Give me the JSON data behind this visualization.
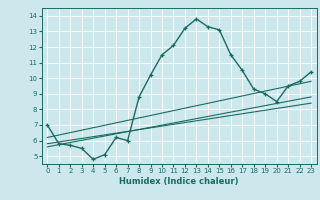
{
  "xlabel": "Humidex (Indice chaleur)",
  "bg_color": "#cce8ec",
  "line_color": "#1a6b62",
  "grid_color": "#ffffff",
  "xlim": [
    -0.5,
    23.5
  ],
  "ylim": [
    4.5,
    14.5
  ],
  "xticks": [
    0,
    1,
    2,
    3,
    4,
    5,
    6,
    7,
    8,
    9,
    10,
    11,
    12,
    13,
    14,
    15,
    16,
    17,
    18,
    19,
    20,
    21,
    22,
    23
  ],
  "yticks": [
    5,
    6,
    7,
    8,
    9,
    10,
    11,
    12,
    13,
    14
  ],
  "line1_x": [
    0,
    1,
    2,
    3,
    4,
    5,
    6,
    7,
    8,
    9,
    10,
    11,
    12,
    13,
    14,
    15,
    16,
    17,
    18,
    19,
    20,
    21,
    22,
    23
  ],
  "line1_y": [
    7.0,
    5.8,
    5.7,
    5.5,
    4.8,
    5.1,
    6.2,
    6.0,
    8.8,
    10.2,
    11.5,
    12.1,
    13.2,
    13.8,
    13.3,
    13.1,
    11.5,
    10.5,
    9.3,
    9.0,
    8.5,
    9.5,
    9.8,
    10.4
  ],
  "line2_x": [
    0,
    23
  ],
  "line2_y": [
    5.6,
    8.8
  ],
  "line3_x": [
    0,
    23
  ],
  "line3_y": [
    5.8,
    8.4
  ],
  "line4_x": [
    0,
    23
  ],
  "line4_y": [
    6.2,
    9.8
  ]
}
